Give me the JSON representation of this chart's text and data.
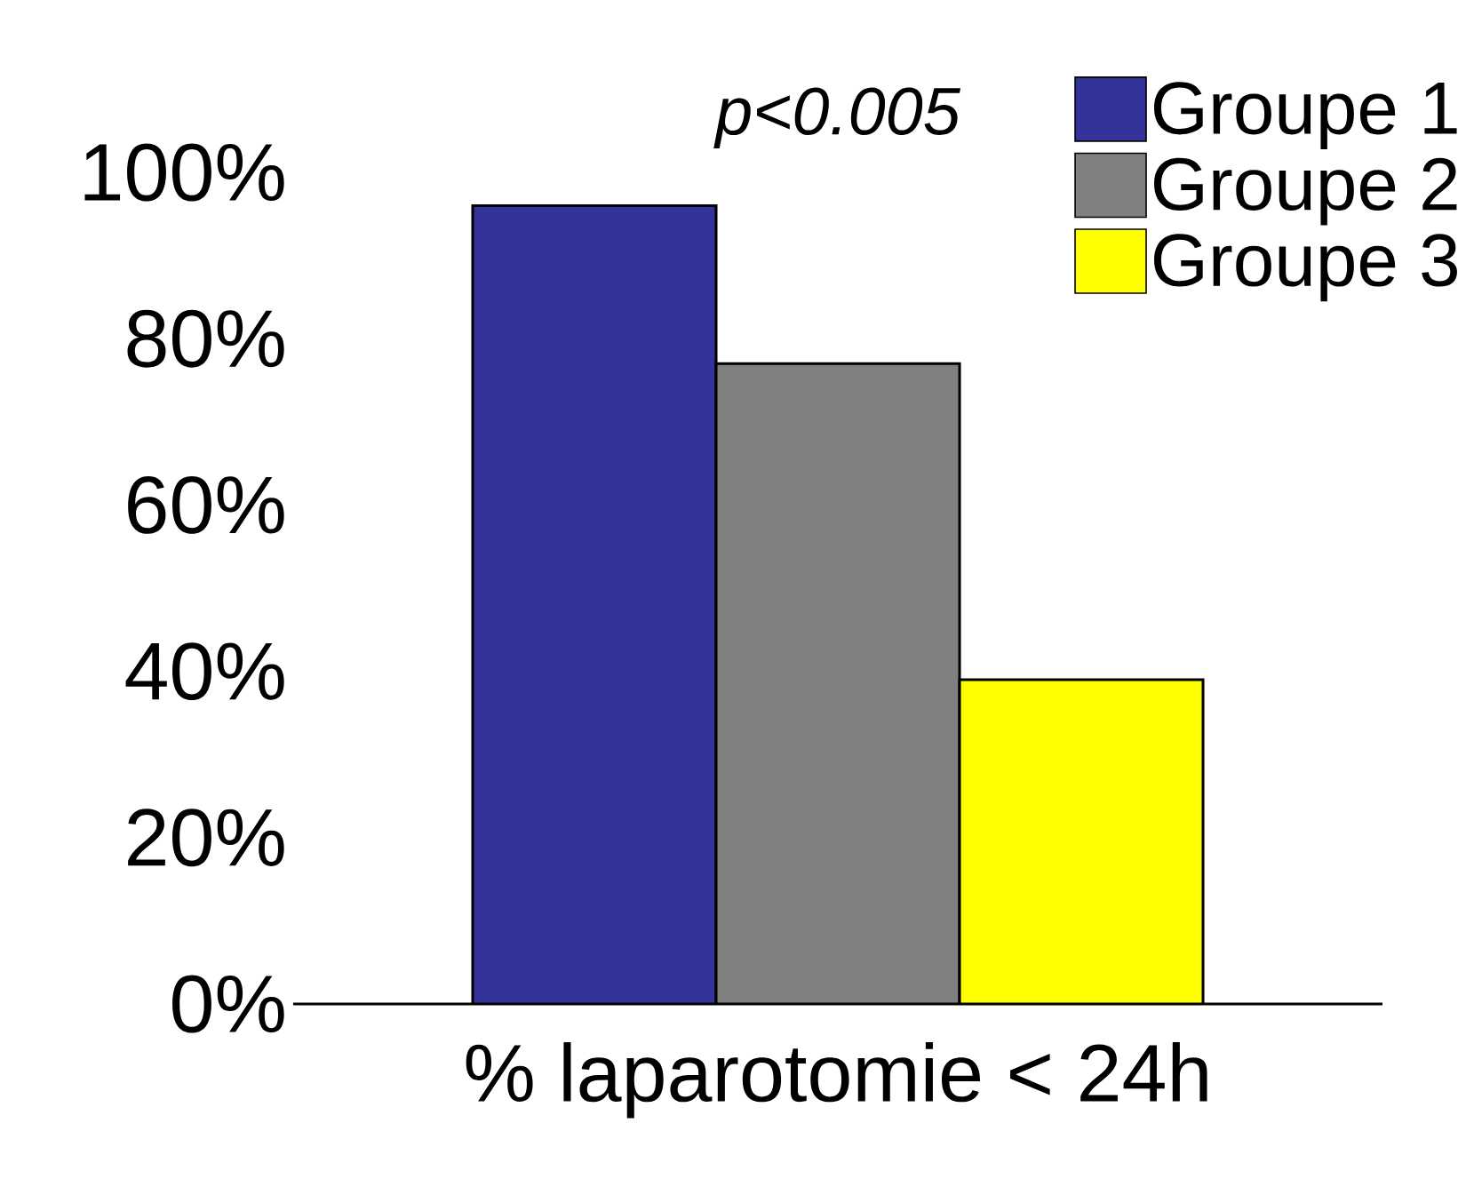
{
  "chart_data": {
    "type": "bar",
    "title": "p<0.005",
    "categories": [
      "% laparotomie < 24h"
    ],
    "series": [
      {
        "name": "Groupe 1",
        "color": "#333399",
        "values": [
          96
        ]
      },
      {
        "name": "Groupe 2",
        "color": "#808080",
        "values": [
          77
        ]
      },
      {
        "name": "Groupe 3",
        "color": "#ffff00",
        "values": [
          39
        ]
      }
    ],
    "ylim": [
      0,
      100
    ],
    "yticks": [
      {
        "value": 0,
        "label": "0%"
      },
      {
        "value": 20,
        "label": "20%"
      },
      {
        "value": 40,
        "label": "40%"
      },
      {
        "value": 60,
        "label": "60%"
      },
      {
        "value": 80,
        "label": "80%"
      },
      {
        "value": 100,
        "label": "100%"
      }
    ],
    "legend": "top right",
    "grid": false
  }
}
